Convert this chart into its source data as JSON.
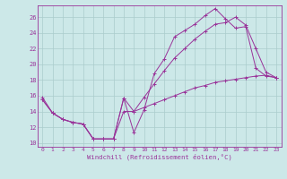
{
  "xlabel": "Windchill (Refroidissement éolien,°C)",
  "bg_color": "#cce8e8",
  "grid_color": "#aacccc",
  "line_color": "#993399",
  "xlim": [
    -0.5,
    23.5
  ],
  "ylim": [
    9.5,
    27.5
  ],
  "xticks": [
    0,
    1,
    2,
    3,
    4,
    5,
    6,
    7,
    8,
    9,
    10,
    11,
    12,
    13,
    14,
    15,
    16,
    17,
    18,
    19,
    20,
    21,
    22,
    23
  ],
  "yticks": [
    10,
    12,
    14,
    16,
    18,
    20,
    22,
    24,
    26
  ],
  "line1_x": [
    0,
    1,
    2,
    3,
    4,
    5,
    6,
    7,
    8,
    9,
    10,
    11,
    12,
    13,
    14,
    15,
    16,
    17,
    18,
    19,
    20,
    21,
    22,
    23
  ],
  "line1_y": [
    15.8,
    13.8,
    13.0,
    12.6,
    12.4,
    10.5,
    10.5,
    10.5,
    15.7,
    11.3,
    14.2,
    18.8,
    20.7,
    23.5,
    24.3,
    25.1,
    26.2,
    27.1,
    25.8,
    24.6,
    24.8,
    19.5,
    18.5,
    18.3
  ],
  "line2_x": [
    0,
    1,
    2,
    3,
    4,
    5,
    6,
    7,
    8,
    9,
    10,
    11,
    12,
    13,
    14,
    15,
    16,
    17,
    18,
    19,
    20,
    21,
    22,
    23
  ],
  "line2_y": [
    15.5,
    13.8,
    13.0,
    12.6,
    12.4,
    10.5,
    10.5,
    10.5,
    15.7,
    14.0,
    15.8,
    17.5,
    19.2,
    20.8,
    22.0,
    23.2,
    24.2,
    25.1,
    25.3,
    26.0,
    25.0,
    22.0,
    19.0,
    18.3
  ],
  "line3_x": [
    0,
    1,
    2,
    3,
    4,
    5,
    6,
    7,
    8,
    9,
    10,
    11,
    12,
    13,
    14,
    15,
    16,
    17,
    18,
    19,
    20,
    21,
    22,
    23
  ],
  "line3_y": [
    15.5,
    13.8,
    13.0,
    12.6,
    12.4,
    10.5,
    10.5,
    10.5,
    14.0,
    14.0,
    14.5,
    15.0,
    15.5,
    16.0,
    16.5,
    17.0,
    17.3,
    17.7,
    17.9,
    18.1,
    18.3,
    18.5,
    18.6,
    18.3
  ]
}
